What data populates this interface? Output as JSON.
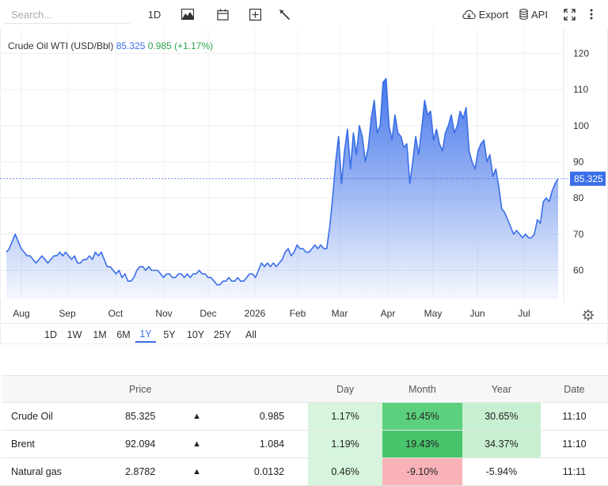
{
  "toolbar": {
    "search_placeholder": "Search...",
    "interval": "1D",
    "export_label": "Export",
    "api_label": "API"
  },
  "legend": {
    "name": "Crude Oil WTI (USD/Bbl)",
    "price": "85.325",
    "change": "0.985 (+1.17%)"
  },
  "colors": {
    "line": "#3a6ee8",
    "fill_top": "#3a6ee8",
    "positive": "#2da44e",
    "badge": "#3a6ee8"
  },
  "chart_data": {
    "type": "area",
    "series": [
      {
        "values": [
          65,
          66,
          68,
          70,
          68,
          66,
          65,
          64,
          64,
          63,
          62,
          63,
          64,
          63,
          62,
          63,
          64,
          64,
          65,
          64,
          65,
          64,
          63,
          64,
          62,
          62,
          63,
          63,
          64,
          63,
          65,
          64,
          65,
          63,
          61,
          61,
          60,
          59,
          60,
          58,
          59,
          57,
          57,
          58,
          60,
          61,
          61,
          60,
          61,
          60,
          60,
          60,
          59,
          58,
          59,
          59,
          58,
          58,
          59,
          59,
          58,
          59,
          58,
          59,
          59,
          60,
          59,
          59,
          58,
          58,
          57,
          56,
          56,
          57,
          57,
          58,
          57,
          57,
          58,
          57,
          57,
          58,
          59,
          59,
          58,
          60,
          62,
          61,
          62,
          61,
          62,
          61,
          62,
          63,
          65,
          66,
          64,
          65,
          67,
          66,
          66,
          65,
          65,
          66,
          67,
          66,
          67,
          66,
          66,
          72,
          80,
          90,
          97,
          84,
          93,
          99,
          88,
          98,
          92,
          100,
          97,
          90,
          94,
          102,
          107,
          98,
          100,
          112,
          113,
          100,
          96,
          103,
          98,
          97,
          94,
          95,
          84,
          90,
          97,
          92,
          99,
          107,
          103,
          104,
          96,
          99,
          95,
          93,
          98,
          100,
          103,
          98,
          100,
          104,
          102,
          105,
          93,
          90,
          88,
          93,
          95,
          96,
          90,
          92,
          86,
          88,
          83,
          77,
          76,
          74,
          72,
          70,
          71,
          70,
          69,
          70,
          69,
          69,
          70,
          74,
          73,
          79,
          80,
          79,
          82,
          84,
          85.325
        ]
      }
    ],
    "x_ticks": [
      "Aug",
      "Sep",
      "Oct",
      "Nov",
      "Dec",
      "2026",
      "Feb",
      "Mar",
      "Apr",
      "May",
      "Jun",
      "Jul"
    ],
    "y_ticks": [
      60,
      70,
      80,
      90,
      100,
      110,
      120
    ],
    "ylim": [
      52,
      126
    ],
    "last_value": 85.325,
    "last_label": "85.325",
    "grid": true
  },
  "ranges": [
    "1D",
    "1W",
    "1M",
    "6M",
    "1Y",
    "5Y",
    "10Y",
    "25Y",
    "All"
  ],
  "active_range": "1Y",
  "table": {
    "headers": [
      "",
      "Price",
      "",
      "",
      "Day",
      "Month",
      "Year",
      "Date"
    ],
    "rows": [
      {
        "name": "Crude Oil",
        "price": "85.325",
        "arrow": "▲",
        "change": "0.985",
        "day": "1.17%",
        "month": "16.45%",
        "year": "30.65%",
        "date": "11:10"
      },
      {
        "name": "Brent",
        "price": "92.094",
        "arrow": "▲",
        "change": "1.084",
        "day": "1.19%",
        "month": "19.43%",
        "year": "34.37%",
        "date": "11:10"
      },
      {
        "name": "Natural gas",
        "price": "2.8782",
        "arrow": "▲",
        "change": "0.0132",
        "day": "0.46%",
        "month": "-9.10%",
        "year": "-5.94%",
        "date": "11:11"
      }
    ]
  }
}
